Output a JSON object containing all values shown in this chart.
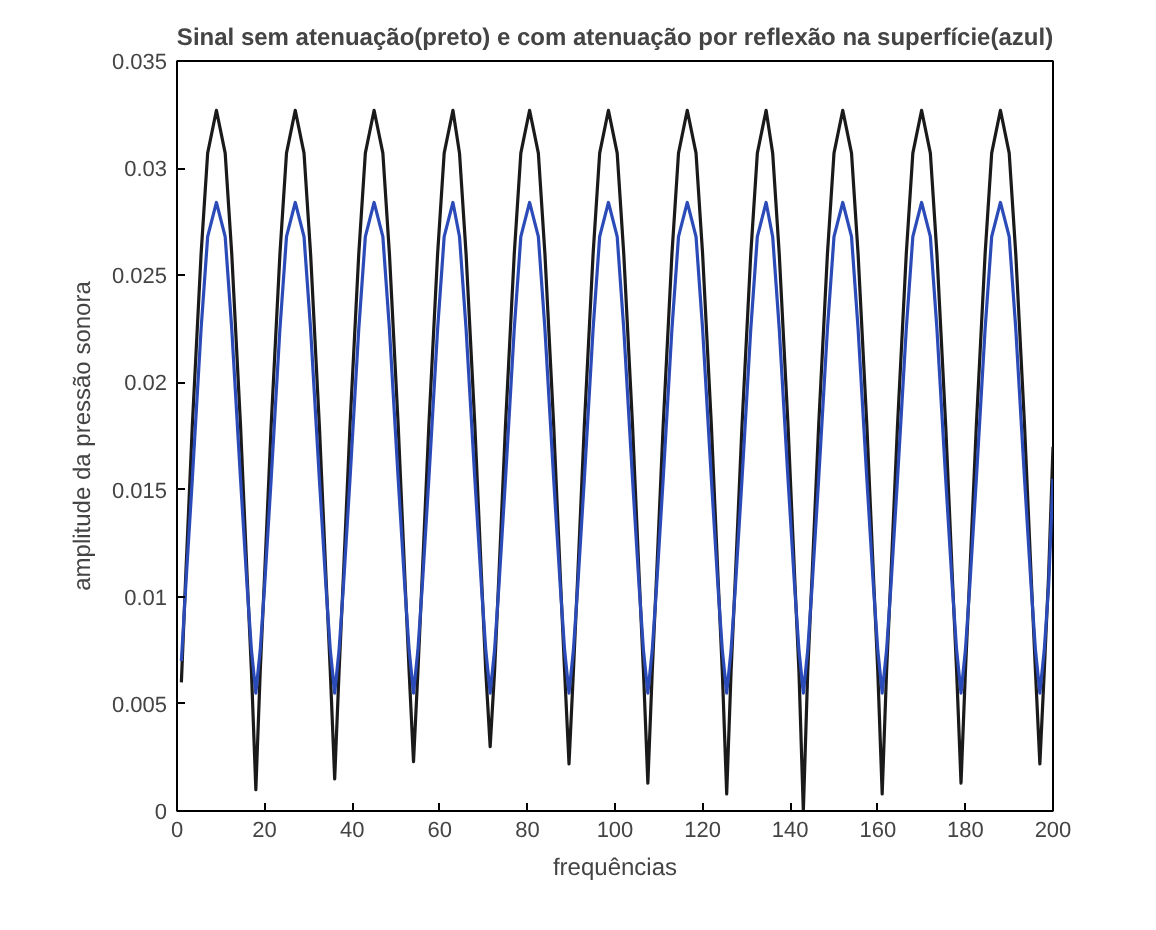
{
  "chart_data": {
    "type": "line",
    "title": "Sinal sem atenuação(preto) e com atenuação por reflexão na superfície(azul)",
    "xlabel": "frequências",
    "ylabel": "amplitude da pressão sonora",
    "x": [
      1,
      2,
      3.5,
      5.5,
      7,
      9,
      11,
      12.5,
      14.5,
      16,
      17,
      18,
      19,
      20,
      21.5,
      23.5,
      25,
      27,
      29,
      30.5,
      32.5,
      34,
      35,
      36,
      37,
      38,
      39.5,
      41.5,
      43,
      45,
      47,
      48.5,
      50.5,
      52,
      53,
      54,
      55,
      56,
      57.5,
      59.5,
      61,
      63,
      64.5,
      66,
      68,
      69.5,
      70.5,
      71.5,
      72.5,
      73.5,
      75,
      77,
      78.5,
      80.5,
      82.5,
      84,
      86,
      87.5,
      88.5,
      89.5,
      90.5,
      91.5,
      93,
      95,
      96.5,
      98.5,
      100.5,
      102,
      104,
      105.5,
      106.5,
      107.5,
      108.5,
      109.5,
      111,
      113,
      114.5,
      116.5,
      118.5,
      120,
      122,
      123.5,
      124.5,
      125.5,
      126.5,
      127.5,
      129,
      131,
      132.5,
      134.5,
      136,
      137.5,
      139.5,
      141,
      142,
      143,
      144,
      145,
      146.5,
      148.5,
      150,
      152,
      154,
      155.5,
      157.5,
      159,
      160,
      161,
      162,
      163,
      164.5,
      166.5,
      168,
      170,
      172,
      173.5,
      175.5,
      177,
      178,
      179,
      180,
      181,
      182.5,
      184.5,
      186,
      188,
      190,
      191.5,
      193.5,
      195,
      196,
      197,
      198,
      199,
      200
    ],
    "series": [
      {
        "color": "#1a1a1a",
        "values": [
          0.006,
          0.011,
          0.018,
          0.026,
          0.0307,
          0.0327,
          0.0307,
          0.026,
          0.018,
          0.011,
          0.0065,
          0.001,
          0.0065,
          0.011,
          0.018,
          0.026,
          0.0307,
          0.0327,
          0.0307,
          0.026,
          0.018,
          0.011,
          0.0065,
          0.0015,
          0.0065,
          0.011,
          0.018,
          0.026,
          0.0307,
          0.0327,
          0.0307,
          0.026,
          0.018,
          0.011,
          0.0065,
          0.0023,
          0.0065,
          0.011,
          0.018,
          0.026,
          0.0307,
          0.0327,
          0.0307,
          0.026,
          0.018,
          0.011,
          0.0065,
          0.003,
          0.0065,
          0.011,
          0.018,
          0.026,
          0.0307,
          0.0327,
          0.0307,
          0.026,
          0.018,
          0.011,
          0.0065,
          0.0022,
          0.0065,
          0.011,
          0.018,
          0.026,
          0.0307,
          0.0327,
          0.0307,
          0.026,
          0.018,
          0.011,
          0.0065,
          0.0013,
          0.0065,
          0.011,
          0.018,
          0.026,
          0.0307,
          0.0327,
          0.0307,
          0.026,
          0.018,
          0.011,
          0.0065,
          0.0008,
          0.0065,
          0.011,
          0.018,
          0.026,
          0.0307,
          0.0327,
          0.0307,
          0.026,
          0.018,
          0.011,
          0.0065,
          0,
          0.0065,
          0.011,
          0.018,
          0.026,
          0.0307,
          0.0327,
          0.0307,
          0.026,
          0.018,
          0.011,
          0.0065,
          0.0008,
          0.0065,
          0.011,
          0.018,
          0.026,
          0.0307,
          0.0327,
          0.0307,
          0.026,
          0.018,
          0.011,
          0.0065,
          0.0013,
          0.0065,
          0.011,
          0.018,
          0.026,
          0.0307,
          0.0327,
          0.0307,
          0.026,
          0.018,
          0.011,
          0.0065,
          0.0022,
          0.0065,
          0.011,
          0.017
        ]
      },
      {
        "color": "#2b4bb8",
        "values": [
          0.007,
          0.0105,
          0.0155,
          0.0225,
          0.0268,
          0.0284,
          0.0268,
          0.0225,
          0.0155,
          0.0105,
          0.0075,
          0.0055,
          0.0075,
          0.0105,
          0.0155,
          0.0225,
          0.0268,
          0.0284,
          0.0268,
          0.0225,
          0.0155,
          0.0105,
          0.0075,
          0.0055,
          0.0075,
          0.0105,
          0.0155,
          0.0225,
          0.0268,
          0.0284,
          0.0268,
          0.0225,
          0.0155,
          0.0105,
          0.0075,
          0.0055,
          0.0075,
          0.0105,
          0.0155,
          0.0225,
          0.0268,
          0.0284,
          0.0268,
          0.0225,
          0.0155,
          0.0105,
          0.0075,
          0.0055,
          0.0075,
          0.0105,
          0.0155,
          0.0225,
          0.0268,
          0.0284,
          0.0268,
          0.0225,
          0.0155,
          0.0105,
          0.0075,
          0.0055,
          0.0075,
          0.0105,
          0.0155,
          0.0225,
          0.0268,
          0.0284,
          0.0268,
          0.0225,
          0.0155,
          0.0105,
          0.0075,
          0.0055,
          0.0075,
          0.0105,
          0.0155,
          0.0225,
          0.0268,
          0.0284,
          0.0268,
          0.0225,
          0.0155,
          0.0105,
          0.0075,
          0.0055,
          0.0075,
          0.0105,
          0.0155,
          0.0225,
          0.0268,
          0.0284,
          0.0268,
          0.0225,
          0.0155,
          0.0105,
          0.0075,
          0.0055,
          0.0075,
          0.0105,
          0.0155,
          0.0225,
          0.0268,
          0.0284,
          0.0268,
          0.0225,
          0.0155,
          0.0105,
          0.0075,
          0.0055,
          0.0075,
          0.0105,
          0.0155,
          0.0225,
          0.0268,
          0.0284,
          0.0268,
          0.0225,
          0.0155,
          0.0105,
          0.0075,
          0.0055,
          0.0075,
          0.0105,
          0.0155,
          0.0225,
          0.0268,
          0.0284,
          0.0268,
          0.0225,
          0.0155,
          0.0105,
          0.0075,
          0.0055,
          0.0075,
          0.0105,
          0.0155
        ]
      }
    ],
    "xlim": [
      0,
      200
    ],
    "ylim": [
      0,
      0.035
    ],
    "xticks": [
      0,
      20,
      40,
      60,
      80,
      100,
      120,
      140,
      160,
      180,
      200
    ],
    "yticks": [
      0,
      0.005,
      0.01,
      0.015,
      0.02,
      0.025,
      0.03,
      0.035
    ],
    "grid": false
  }
}
